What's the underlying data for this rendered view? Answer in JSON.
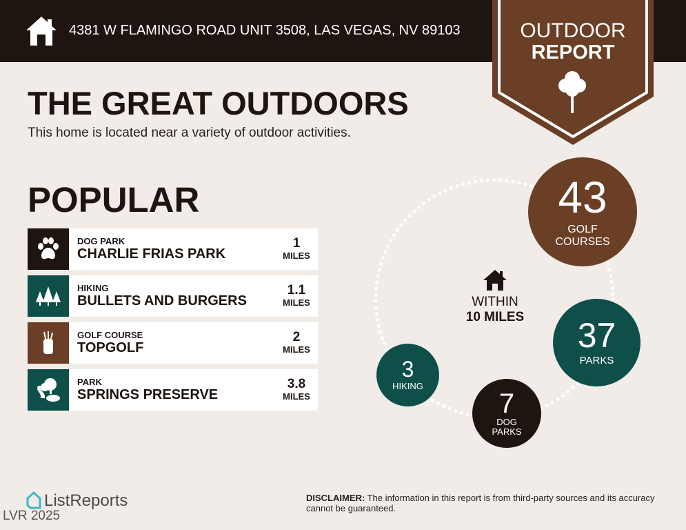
{
  "header": {
    "address": "4381 W FLAMINGO ROAD UNIT 3508, LAS VEGAS, NV 89103",
    "home_icon": "house-icon"
  },
  "badge": {
    "line1": "OUTDOOR",
    "line2": "REPORT",
    "icon": "tree-icon"
  },
  "title": "THE GREAT OUTDOORS",
  "subtitle": "This home is located near a variety of outdoor activities.",
  "popular": {
    "heading": "POPULAR",
    "items": [
      {
        "category": "DOG PARK",
        "name": "CHARLIE FRIAS PARK",
        "distance": "1",
        "unit": "MILES",
        "icon": "paw-icon",
        "color": "#1e1410"
      },
      {
        "category": "HIKING",
        "name": "BULLETS AND BURGERS",
        "distance": "1.1",
        "unit": "MILES",
        "icon": "trees-icon",
        "color": "#0f4f4a"
      },
      {
        "category": "GOLF COURSE",
        "name": "TOPGOLF",
        "distance": "2",
        "unit": "MILES",
        "icon": "golf-bag-icon",
        "color": "#6b3e26"
      },
      {
        "category": "PARK",
        "name": "SPRINGS PRESERVE",
        "distance": "3.8",
        "unit": "MILES",
        "icon": "park-icon",
        "color": "#0f4f4a"
      }
    ]
  },
  "summary": {
    "within_line1": "WITHIN",
    "within_line2": "10 MILES",
    "golf": {
      "count": "43",
      "label1": "GOLF",
      "label2": "COURSES"
    },
    "parks": {
      "count": "37",
      "label1": "PARKS"
    },
    "dog_parks": {
      "count": "7",
      "label1": "DOG",
      "label2": "PARKS"
    },
    "hiking": {
      "count": "3",
      "label1": "HIKING"
    }
  },
  "footer": {
    "logo": "ListReports",
    "watermark": "LVR 2025",
    "disclaimer_label": "DISCLAIMER:",
    "disclaimer_text": " The information in this report is from third-party sources and its accuracy cannot be guaranteed."
  },
  "colors": {
    "dark": "#1e1410",
    "brown": "#6b3e26",
    "teal": "#0f4f4a",
    "background": "#f1ece8"
  }
}
